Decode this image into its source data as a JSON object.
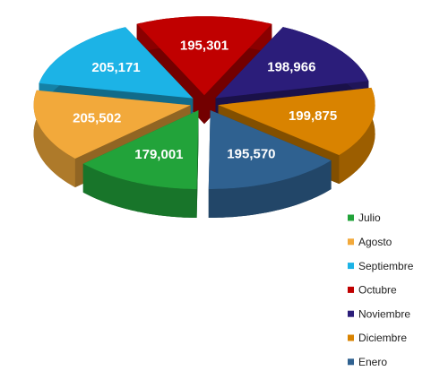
{
  "chart_data": {
    "type": "pie3d",
    "categories": [
      "Julio",
      "Agosto",
      "Septiembre",
      "Octubre",
      "Noviembre",
      "Diciembre",
      "Enero"
    ],
    "values": [
      179001,
      205502,
      205171,
      195301,
      198966,
      199875,
      195570
    ],
    "value_labels": [
      "179,001",
      "205,502",
      "205,171",
      "195,301",
      "198,966",
      "199,875",
      "195,570"
    ],
    "colors": [
      "#22a33a",
      "#f2a93b",
      "#1cb3e6",
      "#c00000",
      "#2b1d7a",
      "#d98300",
      "#2f6190"
    ],
    "legend": "bottom-right"
  }
}
